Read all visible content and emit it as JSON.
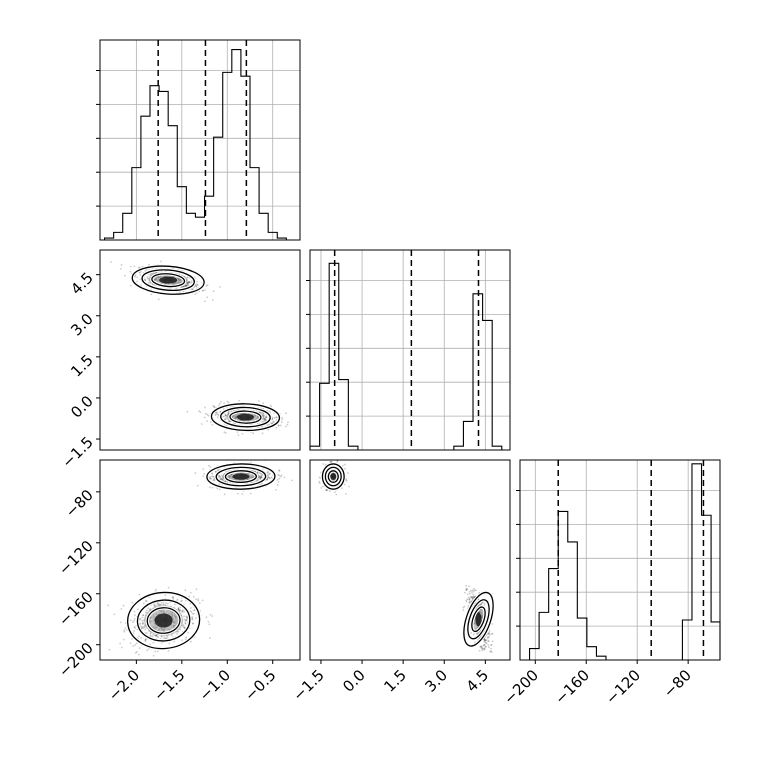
{
  "chart_data": [
    {
      "panel": "hist-param1",
      "type": "histogram",
      "grid": true,
      "xlim": [
        -2.4,
        -0.2
      ],
      "ylim": [
        0,
        1.05
      ],
      "x_ticks": [
        -2.0,
        -1.5,
        -1.0,
        -0.5
      ],
      "x_tick_labels": [
        "−2.0",
        "−1.5",
        "−1.0",
        "−0.5"
      ],
      "bin_edges": [
        -2.35,
        -2.25,
        -2.15,
        -2.05,
        -1.95,
        -1.85,
        -1.75,
        -1.65,
        -1.55,
        -1.45,
        -1.35,
        -1.25,
        -1.15,
        -1.05,
        -0.95,
        -0.85,
        -0.75,
        -0.65,
        -0.55,
        -0.45,
        -0.35,
        -0.25
      ],
      "counts": [
        0.01,
        0.04,
        0.14,
        0.38,
        0.65,
        0.81,
        0.78,
        0.6,
        0.28,
        0.14,
        0.12,
        0.23,
        0.54,
        0.88,
        1.0,
        0.86,
        0.38,
        0.14,
        0.04,
        0.01,
        0.0
      ],
      "quantile_lines": [
        -1.76,
        -1.24,
        -0.79
      ]
    },
    {
      "panel": "hist-param2",
      "type": "histogram",
      "grid": true,
      "xlim": [
        -1.9,
        5.4
      ],
      "ylim": [
        0,
        1.05
      ],
      "x_ticks": [
        -1.5,
        0.0,
        1.5,
        3.0,
        4.5
      ],
      "x_tick_labels": [
        "−1.5",
        "0.0",
        "1.5",
        "3.0",
        "4.5"
      ],
      "bin_edges": [
        -1.9,
        -1.55,
        -1.2,
        -0.85,
        -0.5,
        -0.15,
        0.2,
        0.55,
        0.9,
        1.25,
        1.6,
        1.95,
        2.3,
        2.65,
        3.0,
        3.35,
        3.7,
        4.05,
        4.4,
        4.75,
        5.1,
        5.4
      ],
      "counts": [
        0.02,
        0.35,
        0.98,
        0.37,
        0.02,
        0,
        0,
        0,
        0,
        0,
        0,
        0,
        0,
        0,
        0,
        0.02,
        0.15,
        0.82,
        0.68,
        0.02,
        0
      ],
      "quantile_lines": [
        -1.0,
        1.8,
        4.25
      ]
    },
    {
      "panel": "hist-param3",
      "type": "histogram",
      "grid": true,
      "xlim": [
        -212,
        -55
      ],
      "ylim": [
        0,
        1.05
      ],
      "x_ticks": [
        -200,
        -160,
        -120,
        -80
      ],
      "x_tick_labels": [
        "−200",
        "−160",
        "−120",
        "−80"
      ],
      "bin_edges": [
        -212,
        -204.5,
        -197,
        -189.5,
        -182,
        -174.5,
        -167,
        -159.5,
        -152,
        -144.5,
        -137,
        -129.5,
        -122,
        -114.5,
        -107,
        -99.5,
        -92,
        -84.5,
        -77,
        -69.5,
        -62,
        -55
      ],
      "counts": [
        0,
        0.06,
        0.25,
        0.48,
        0.78,
        0.62,
        0.22,
        0.07,
        0.02,
        0,
        0,
        0,
        0,
        0,
        0,
        0,
        0,
        0.21,
        1.03,
        0.76,
        0.2
      ],
      "quantile_lines": [
        -182,
        -109,
        -68
      ]
    },
    {
      "panel": "scatter-param1-vs-param2",
      "type": "scatter",
      "grid": false,
      "xlim": [
        -2.4,
        -0.2
      ],
      "ylim": [
        -1.9,
        5.4
      ],
      "y_ticks": [
        -1.5,
        0.0,
        1.5,
        3.0,
        4.5
      ],
      "y_tick_labels": [
        "−1.5",
        "0.0",
        "1.5",
        "3.0",
        "4.5"
      ],
      "clusters": [
        {
          "center": [
            -1.65,
            4.3
          ],
          "sx": 0.18,
          "sy": 0.23,
          "rho": -0.55
        },
        {
          "center": [
            -0.8,
            -0.7
          ],
          "sx": 0.17,
          "sy": 0.22,
          "rho": -0.2
        }
      ]
    },
    {
      "panel": "scatter-param1-vs-param3",
      "type": "scatter",
      "grid": false,
      "xlim": [
        -2.4,
        -0.2
      ],
      "ylim": [
        -212,
        -55
      ],
      "y_ticks": [
        -200,
        -160,
        -120,
        -80
      ],
      "y_tick_labels": [
        "−200",
        "−160",
        "−120",
        "−80"
      ],
      "clusters": [
        {
          "center": [
            -1.7,
            -181
          ],
          "sx": 0.18,
          "sy": 10,
          "rho": 0.25
        },
        {
          "center": [
            -0.85,
            -68
          ],
          "sx": 0.17,
          "sy": 4.5,
          "rho": 0.1
        }
      ]
    },
    {
      "panel": "scatter-param2-vs-param3",
      "type": "scatter",
      "grid": false,
      "xlim": [
        -1.9,
        5.4
      ],
      "ylim": [
        -212,
        -55
      ],
      "clusters": [
        {
          "center": [
            -1.05,
            -68
          ],
          "sx": 0.18,
          "sy": 4.5,
          "rho": 0.0
        },
        {
          "center": [
            4.25,
            -180
          ],
          "sx": 0.2,
          "sy": 10,
          "rho": -0.6
        }
      ]
    }
  ]
}
